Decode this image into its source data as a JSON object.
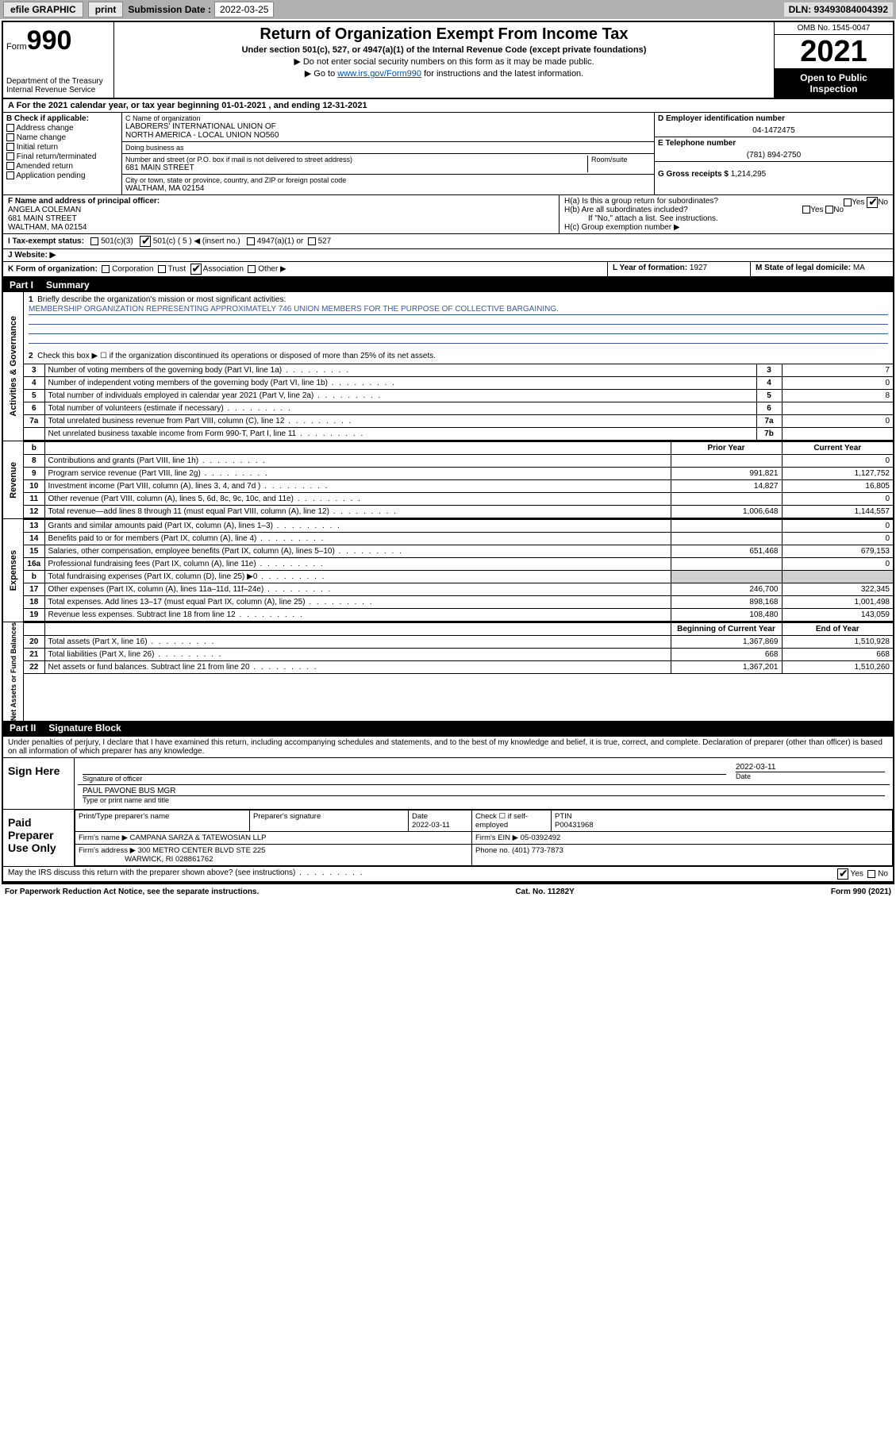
{
  "topbar": {
    "efile": "efile GRAPHIC",
    "print": "print",
    "sub_label": "Submission Date :",
    "sub_date": "2022-03-25",
    "dln": "DLN: 93493084004392"
  },
  "header": {
    "form_word": "Form",
    "form_no": "990",
    "dept": "Department of the Treasury\nInternal Revenue Service",
    "title": "Return of Organization Exempt From Income Tax",
    "subtitle": "Under section 501(c), 527, or 4947(a)(1) of the Internal Revenue Code (except private foundations)",
    "arrow1": "▶ Do not enter social security numbers on this form as it may be made public.",
    "arrow2_pre": "▶ Go to ",
    "arrow2_link": "www.irs.gov/Form990",
    "arrow2_post": " for instructions and the latest information.",
    "omb": "OMB No. 1545-0047",
    "year": "2021",
    "open": "Open to Public Inspection"
  },
  "row_a": "A For the 2021 calendar year, or tax year beginning 01-01-2021   , and ending 12-31-2021",
  "col_b": {
    "title": "B Check if applicable:",
    "items": [
      "Address change",
      "Name change",
      "Initial return",
      "Final return/terminated",
      "Amended return",
      "Application pending"
    ]
  },
  "col_c": {
    "name_lbl": "C Name of organization",
    "name1": "LABORERS' INTERNATIONAL UNION OF",
    "name2": "NORTH AMERICA - LOCAL UNION NO560",
    "dba_lbl": "Doing business as",
    "dba": "",
    "addr_lbl": "Number and street (or P.O. box if mail is not delivered to street address)",
    "room_lbl": "Room/suite",
    "addr": "681 MAIN STREET",
    "city_lbl": "City or town, state or province, country, and ZIP or foreign postal code",
    "city": "WALTHAM, MA  02154"
  },
  "col_d": {
    "lbl": "D Employer identification number",
    "val": "04-1472475"
  },
  "col_e": {
    "lbl": "E Telephone number",
    "val": "(781) 894-2750"
  },
  "col_g": {
    "lbl": "G Gross receipts $",
    "val": "1,214,295"
  },
  "col_f": {
    "lbl": "F Name and address of principal officer:",
    "l1": "ANGELA COLEMAN",
    "l2": "681 MAIN STREET",
    "l3": "WALTHAM, MA  02154"
  },
  "col_h": {
    "ha": "H(a)  Is this a group return for subordinates?",
    "hb": "H(b)  Are all subordinates included?",
    "hb_note": "If \"No,\" attach a list. See instructions.",
    "hc": "H(c)  Group exemption number ▶",
    "yes": "Yes",
    "no": "No"
  },
  "row_i": {
    "lbl": "I   Tax-exempt status:",
    "o1": "501(c)(3)",
    "o2": "501(c) ( 5 ) ◀ (insert no.)",
    "o3": "4947(a)(1) or",
    "o4": "527"
  },
  "row_j": {
    "lbl": "J   Website: ▶",
    "val": ""
  },
  "row_k": {
    "lbl": "K Form of organization:",
    "o1": "Corporation",
    "o2": "Trust",
    "o3": "Association",
    "o4": "Other ▶"
  },
  "row_l": {
    "lbl": "L Year of formation:",
    "val": "1927"
  },
  "row_m": {
    "lbl": "M State of legal domicile:",
    "val": "MA"
  },
  "part1": {
    "pt": "Part I",
    "title": "Summary"
  },
  "gov": {
    "tab": "Activities & Governance",
    "l1": "Briefly describe the organization's mission or most significant activities:",
    "mission": "MEMBERSHIP ORGANIZATION REPRESENTING APPROXIMATELY 746 UNION MEMBERS FOR THE PURPOSE OF COLLECTIVE BARGAINING.",
    "l2": "Check this box ▶ ☐  if the organization discontinued its operations or disposed of more than 25% of its net assets.",
    "rows": [
      {
        "n": "3",
        "d": "Number of voting members of the governing body (Part VI, line 1a)",
        "ln": "3",
        "v": "7"
      },
      {
        "n": "4",
        "d": "Number of independent voting members of the governing body (Part VI, line 1b)",
        "ln": "4",
        "v": "0"
      },
      {
        "n": "5",
        "d": "Total number of individuals employed in calendar year 2021 (Part V, line 2a)",
        "ln": "5",
        "v": "8"
      },
      {
        "n": "6",
        "d": "Total number of volunteers (estimate if necessary)",
        "ln": "6",
        "v": ""
      },
      {
        "n": "7a",
        "d": "Total unrelated business revenue from Part VIII, column (C), line 12",
        "ln": "7a",
        "v": "0"
      },
      {
        "n": "",
        "d": "Net unrelated business taxable income from Form 990-T, Part I, line 11",
        "ln": "7b",
        "v": ""
      }
    ]
  },
  "rev": {
    "tab": "Revenue",
    "h_b": "b",
    "h_prior": "Prior Year",
    "h_cur": "Current Year",
    "rows": [
      {
        "n": "8",
        "d": "Contributions and grants (Part VIII, line 1h)",
        "p": "",
        "c": "0"
      },
      {
        "n": "9",
        "d": "Program service revenue (Part VIII, line 2g)",
        "p": "991,821",
        "c": "1,127,752"
      },
      {
        "n": "10",
        "d": "Investment income (Part VIII, column (A), lines 3, 4, and 7d )",
        "p": "14,827",
        "c": "16,805"
      },
      {
        "n": "11",
        "d": "Other revenue (Part VIII, column (A), lines 5, 6d, 8c, 9c, 10c, and 11e)",
        "p": "",
        "c": "0"
      },
      {
        "n": "12",
        "d": "Total revenue—add lines 8 through 11 (must equal Part VIII, column (A), line 12)",
        "p": "1,006,648",
        "c": "1,144,557"
      }
    ]
  },
  "exp": {
    "tab": "Expenses",
    "rows": [
      {
        "n": "13",
        "d": "Grants and similar amounts paid (Part IX, column (A), lines 1–3)",
        "p": "",
        "c": "0"
      },
      {
        "n": "14",
        "d": "Benefits paid to or for members (Part IX, column (A), line 4)",
        "p": "",
        "c": "0"
      },
      {
        "n": "15",
        "d": "Salaries, other compensation, employee benefits (Part IX, column (A), lines 5–10)",
        "p": "651,468",
        "c": "679,153"
      },
      {
        "n": "16a",
        "d": "Professional fundraising fees (Part IX, column (A), line 11e)",
        "p": "",
        "c": "0"
      },
      {
        "n": "b",
        "d": "Total fundraising expenses (Part IX, column (D), line 25) ▶0",
        "p": "grey",
        "c": "grey"
      },
      {
        "n": "17",
        "d": "Other expenses (Part IX, column (A), lines 11a–11d, 11f–24e)",
        "p": "246,700",
        "c": "322,345"
      },
      {
        "n": "18",
        "d": "Total expenses. Add lines 13–17 (must equal Part IX, column (A), line 25)",
        "p": "898,168",
        "c": "1,001,498"
      },
      {
        "n": "19",
        "d": "Revenue less expenses. Subtract line 18 from line 12",
        "p": "108,480",
        "c": "143,059"
      }
    ]
  },
  "net": {
    "tab": "Net Assets or Fund Balances",
    "h_beg": "Beginning of Current Year",
    "h_end": "End of Year",
    "rows": [
      {
        "n": "20",
        "d": "Total assets (Part X, line 16)",
        "p": "1,367,869",
        "c": "1,510,928"
      },
      {
        "n": "21",
        "d": "Total liabilities (Part X, line 26)",
        "p": "668",
        "c": "668"
      },
      {
        "n": "22",
        "d": "Net assets or fund balances. Subtract line 21 from line 20",
        "p": "1,367,201",
        "c": "1,510,260"
      }
    ]
  },
  "part2": {
    "pt": "Part II",
    "title": "Signature Block"
  },
  "sig": {
    "declare": "Under penalties of perjury, I declare that I have examined this return, including accompanying schedules and statements, and to the best of my knowledge and belief, it is true, correct, and complete. Declaration of preparer (other than officer) is based on all information of which preparer has any knowledge.",
    "sign_here": "Sign Here",
    "sig_officer_lbl": "Signature of officer",
    "sig_date": "2022-03-11",
    "date_lbl": "Date",
    "name_title": "PAUL PAVONE  BUS MGR",
    "name_title_lbl": "Type or print name and title",
    "paid_lbl": "Paid Preparer Use Only",
    "prep_name_lbl": "Print/Type preparer's name",
    "prep_sig_lbl": "Preparer's signature",
    "prep_date_lbl": "Date",
    "prep_date": "2022-03-11",
    "self_emp": "Check ☐ if self-employed",
    "ptin_lbl": "PTIN",
    "ptin": "P00431968",
    "firm_name_lbl": "Firm's name    ▶",
    "firm_name": "CAMPANA SARZA & TATEWOSIAN LLP",
    "firm_ein_lbl": "Firm's EIN ▶",
    "firm_ein": "05-0392492",
    "firm_addr_lbl": "Firm's address ▶",
    "firm_addr1": "300 METRO CENTER BLVD STE 225",
    "firm_addr2": "WARWICK, RI  028861762",
    "phone_lbl": "Phone no.",
    "phone": "(401) 773-7873",
    "discuss": "May the IRS discuss this return with the preparer shown above? (see instructions)",
    "yes": "Yes",
    "no": "No"
  },
  "footer": {
    "left": "For Paperwork Reduction Act Notice, see the separate instructions.",
    "mid": "Cat. No. 11282Y",
    "right": "Form 990 (2021)"
  }
}
